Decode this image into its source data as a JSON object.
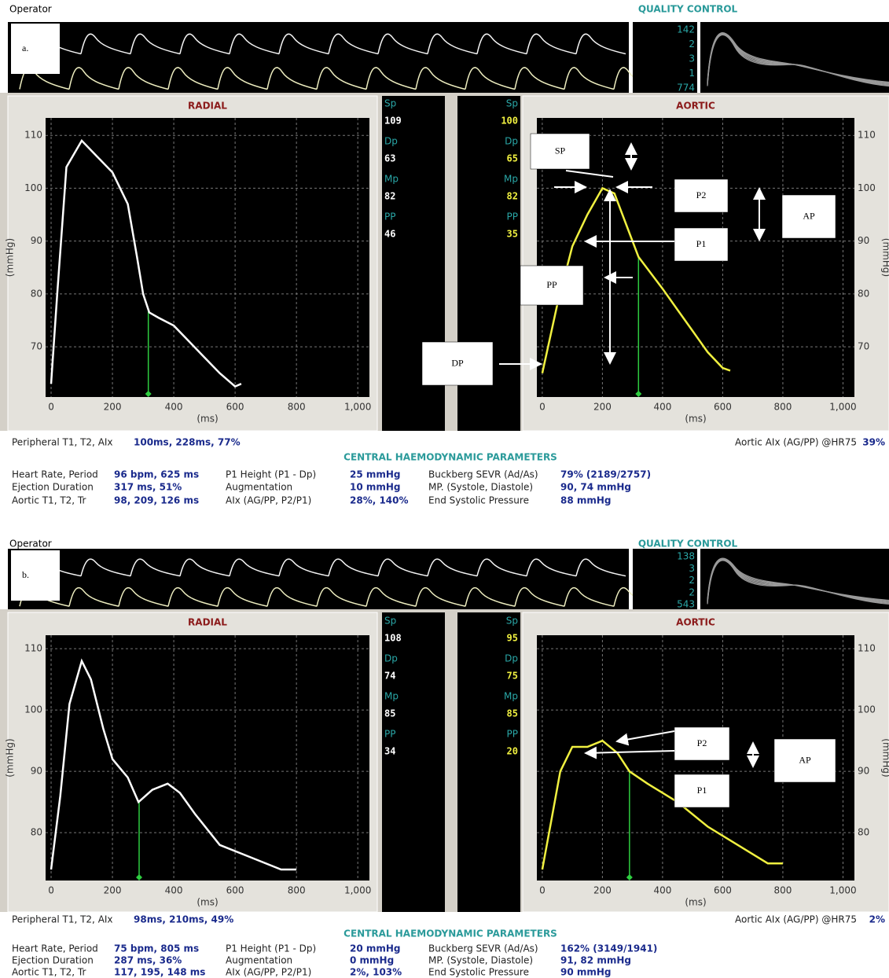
{
  "panels": [
    {
      "label": "a.",
      "operator": "Operator",
      "qc_title": "QUALITY CONTROL",
      "qc_values": [
        142,
        2,
        3,
        1,
        774
      ],
      "radial": {
        "type": "line",
        "title": "RADIAL",
        "ylabel": "(mmHg)",
        "xlabel": "(ms)",
        "color": "#ffffff",
        "xlim": [
          -18,
          1038
        ],
        "ylim": [
          60.5,
          113.3
        ],
        "xticks": [
          0,
          200,
          400,
          600,
          800,
          {
            "value": 1000,
            "label": "1,000"
          }
        ],
        "yticks": [
          70,
          80,
          90,
          100,
          110
        ],
        "x": [
          0,
          20,
          50,
          100,
          150,
          200,
          250,
          280,
          300,
          320,
          350,
          400,
          450,
          500,
          550,
          600,
          620
        ],
        "values": [
          63,
          80,
          104,
          109,
          106,
          103,
          97,
          87,
          80,
          76.5,
          75.5,
          74,
          71,
          68,
          65,
          62.5,
          63
        ],
        "notch": 317
      },
      "aortic": {
        "type": "line",
        "title": "AORTIC",
        "ylabel": "(mmHg)",
        "xlabel": "(ms)",
        "color": "#f0f040",
        "xlim": [
          -18,
          1038
        ],
        "ylim": [
          60.5,
          113.3
        ],
        "xticks": [
          0,
          200,
          400,
          600,
          800,
          {
            "value": 1000,
            "label": "1,000"
          }
        ],
        "yticks": [
          70,
          80,
          90,
          100,
          110
        ],
        "x": [
          0,
          50,
          100,
          150,
          200,
          240,
          280,
          320,
          360,
          400,
          450,
          500,
          550,
          600,
          625
        ],
        "values": [
          65,
          78,
          89,
          95,
          100,
          99,
          93,
          87,
          84,
          81,
          77,
          73,
          69,
          66,
          65.5
        ],
        "notch": 320
      },
      "readouts": {
        "radial": [
          {
            "label": "Sp",
            "value": 109
          },
          {
            "label": "Dp",
            "value": 63
          },
          {
            "label": "Mp",
            "value": 82
          },
          {
            "label": "PP",
            "value": 46
          }
        ],
        "aortic": [
          {
            "label": "Sp",
            "value": 100
          },
          {
            "label": "Dp",
            "value": 65
          },
          {
            "label": "Mp",
            "value": 82
          },
          {
            "label": "PP",
            "value": 35
          }
        ]
      },
      "annotations": [
        "SP",
        "P2",
        "P1",
        "PP",
        "DP",
        "AP"
      ],
      "summary": {
        "peripheral_label": "Peripheral T1, T2, AIx",
        "peripheral_value": "100ms, 228ms, 77%",
        "aortic_aix_label": "Aortic AIx (AG/PP) @HR75",
        "aortic_aix_value": "39%",
        "central_title": "CENTRAL HAEMODYNAMIC PARAMETERS",
        "params": [
          [
            [
              "Heart Rate, Period",
              "96 bpm, 625 ms"
            ],
            [
              "P1 Height (P1 - Dp)",
              "25 mmHg"
            ],
            [
              "Buckberg SEVR (Ad/As)",
              "79% (2189/2757)"
            ]
          ],
          [
            [
              "Ejection Duration",
              "317 ms, 51%"
            ],
            [
              "Augmentation",
              "10 mmHg"
            ],
            [
              "MP. (Systole, Diastole)",
              "90, 74 mmHg"
            ]
          ],
          [
            [
              "Aortic T1, T2, Tr",
              "98, 209, 126 ms"
            ],
            [
              "AIx (AG/PP, P2/P1)",
              "28%, 140%"
            ],
            [
              "End Systolic Pressure",
              "88 mmHg"
            ]
          ]
        ]
      }
    },
    {
      "label": "b.",
      "operator": "Operator",
      "qc_title": "QUALITY CONTROL",
      "qc_values": [
        138,
        3,
        2,
        2,
        543
      ],
      "radial": {
        "type": "line",
        "title": "RADIAL",
        "ylabel": "(mmHg)",
        "xlabel": "(ms)",
        "color": "#ffffff",
        "xlim": [
          -18,
          1038
        ],
        "ylim": [
          72.2,
          112.2
        ],
        "xticks": [
          0,
          200,
          400,
          600,
          800,
          {
            "value": 1000,
            "label": "1,000"
          }
        ],
        "yticks": [
          80,
          90,
          100,
          110
        ],
        "x": [
          0,
          30,
          60,
          100,
          130,
          170,
          200,
          250,
          285,
          330,
          380,
          420,
          470,
          550,
          650,
          750,
          800
        ],
        "values": [
          74,
          86,
          101,
          108,
          105,
          97,
          92,
          89,
          85,
          87,
          88,
          86.5,
          83,
          78,
          76,
          74,
          74
        ],
        "notch": 287
      },
      "aortic": {
        "type": "line",
        "title": "AORTIC",
        "ylabel": "(mmHg)",
        "xlabel": "(ms)",
        "color": "#f0f040",
        "xlim": [
          -18,
          1038
        ],
        "ylim": [
          72.2,
          112.2
        ],
        "xticks": [
          0,
          200,
          400,
          600,
          800,
          {
            "value": 1000,
            "label": "1,000"
          }
        ],
        "yticks": [
          80,
          90,
          100,
          110
        ],
        "x": [
          0,
          30,
          60,
          100,
          150,
          200,
          250,
          290,
          350,
          450,
          550,
          650,
          750,
          800
        ],
        "values": [
          74,
          82,
          90,
          94,
          94,
          95,
          93,
          90,
          88,
          85,
          81,
          78,
          75,
          75
        ],
        "notch": 290
      },
      "readouts": {
        "radial": [
          {
            "label": "Sp",
            "value": 108
          },
          {
            "label": "Dp",
            "value": 74
          },
          {
            "label": "Mp",
            "value": 85
          },
          {
            "label": "PP",
            "value": 34
          }
        ],
        "aortic": [
          {
            "label": "Sp",
            "value": 95
          },
          {
            "label": "Dp",
            "value": 75
          },
          {
            "label": "Mp",
            "value": 85
          },
          {
            "label": "PP",
            "value": 20
          }
        ]
      },
      "annotations": [
        "P2",
        "AP",
        "P1"
      ],
      "summary": {
        "peripheral_label": "Peripheral T1, T2, AIx",
        "peripheral_value": "98ms, 210ms, 49%",
        "aortic_aix_label": "Aortic AIx (AG/PP) @HR75",
        "aortic_aix_value": "2%",
        "central_title": "CENTRAL HAEMODYNAMIC PARAMETERS",
        "params": [
          [
            [
              "Heart Rate, Period",
              "75 bpm, 805 ms"
            ],
            [
              "P1 Height (P1 - Dp)",
              "20 mmHg"
            ],
            [
              "Buckberg SEVR (Ad/As)",
              "162% (3149/1941)"
            ]
          ],
          [
            [
              "Ejection Duration",
              "287 ms, 36%"
            ],
            [
              "Augmentation",
              "0 mmHg"
            ],
            [
              "MP. (Systole, Diastole)",
              "91, 82 mmHg"
            ]
          ],
          [
            [
              "Aortic T1, T2, Tr",
              "117, 195, 148 ms"
            ],
            [
              "AIx (AG/PP, P2/P1)",
              "2%, 103%"
            ],
            [
              "End Systolic Pressure",
              "90 mmHg"
            ]
          ]
        ]
      }
    }
  ]
}
